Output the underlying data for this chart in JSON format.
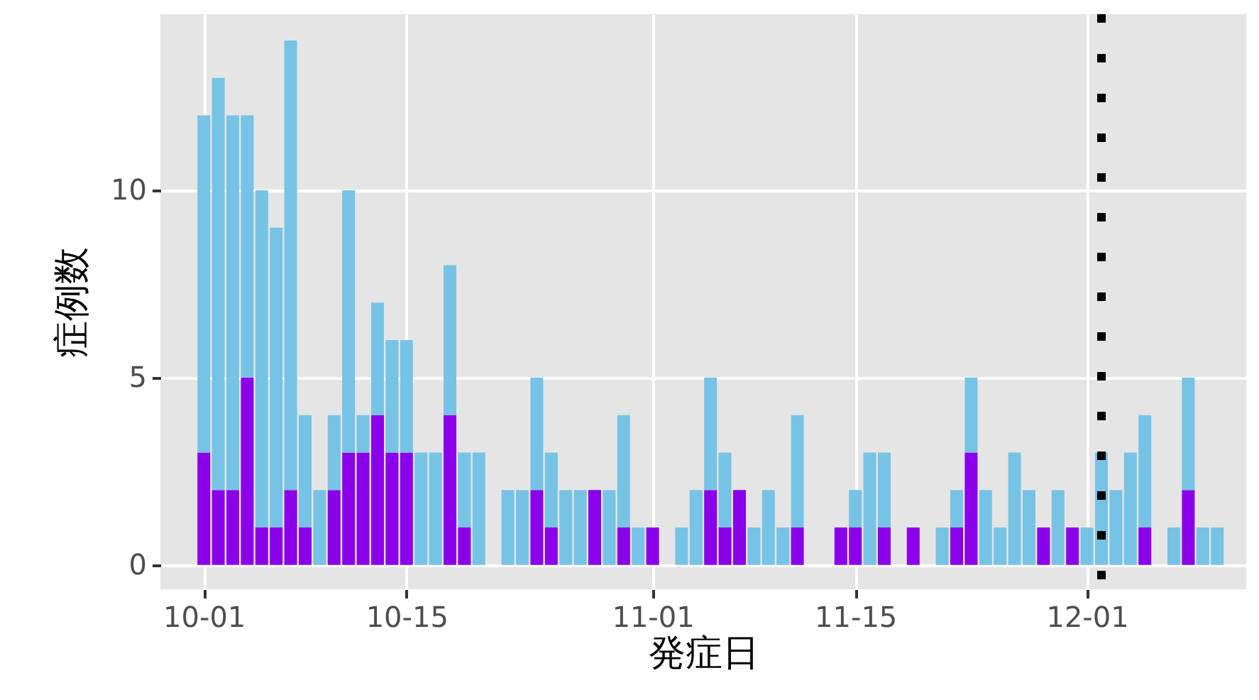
{
  "chart_data": {
    "type": "bar",
    "stacked": true,
    "xlabel": "発症日",
    "ylabel": "症例数",
    "x": [
      "--10-01",
      "--10-02",
      "--10-03",
      "--10-04",
      "--10-05",
      "--10-06",
      "--10-07",
      "--10-08",
      "--10-09",
      "--10-10",
      "--10-11",
      "--10-12",
      "--10-13",
      "--10-14",
      "--10-15",
      "--10-16",
      "--10-17",
      "--10-18",
      "--10-19",
      "--10-20",
      "--10-21",
      "--10-22",
      "--10-23",
      "--10-24",
      "--10-25",
      "--10-26",
      "--10-27",
      "--10-28",
      "--10-29",
      "--10-30",
      "--10-31",
      "--11-01",
      "--11-02",
      "--11-03",
      "--11-04",
      "--11-05",
      "--11-06",
      "--11-07",
      "--11-08",
      "--11-09",
      "--11-10",
      "--11-11",
      "--11-12",
      "--11-13",
      "--11-14",
      "--11-15",
      "--11-16",
      "--11-17",
      "--11-18",
      "--11-19",
      "--11-20",
      "--11-21",
      "--11-22",
      "--11-23",
      "--11-24",
      "--11-25",
      "--11-26",
      "--11-27",
      "--11-28",
      "--11-29",
      "--11-30",
      "--12-01",
      "--12-02",
      "--12-03",
      "--12-04",
      "--12-05",
      "--12-06",
      "--12-07",
      "--12-08",
      "--12-09",
      "--12-10"
    ],
    "series": [
      {
        "color": "#8a00e8",
        "values": [
          3,
          2,
          2,
          5,
          1,
          1,
          2,
          1,
          0,
          2,
          3,
          3,
          4,
          3,
          3,
          0,
          0,
          4,
          1,
          0,
          0,
          0,
          0,
          2,
          1,
          0,
          0,
          2,
          0,
          1,
          0,
          1,
          0,
          0,
          0,
          2,
          1,
          2,
          0,
          0,
          0,
          1,
          0,
          0,
          1,
          1,
          0,
          1,
          0,
          1,
          0,
          0,
          1,
          3,
          0,
          0,
          0,
          0,
          1,
          0,
          1,
          0,
          0,
          0,
          0,
          1,
          0,
          0,
          2,
          0,
          0
        ]
      },
      {
        "color": "#77c3e6",
        "values": [
          9,
          11,
          10,
          7,
          9,
          8,
          12,
          3,
          2,
          2,
          7,
          1,
          3,
          3,
          3,
          3,
          3,
          4,
          2,
          3,
          0,
          2,
          2,
          3,
          2,
          2,
          2,
          0,
          2,
          3,
          1,
          0,
          0,
          1,
          2,
          3,
          2,
          0,
          1,
          2,
          1,
          3,
          0,
          0,
          0,
          1,
          3,
          2,
          0,
          0,
          0,
          1,
          1,
          2,
          2,
          1,
          3,
          2,
          0,
          2,
          0,
          1,
          3,
          2,
          3,
          3,
          0,
          1,
          3,
          1,
          1
        ]
      }
    ],
    "xlim": [
      "--09-28",
      "--12-12"
    ],
    "xticks": [
      {
        "value": "--10-01",
        "label": "10-01"
      },
      {
        "value": "--10-15",
        "label": "10-15"
      },
      {
        "value": "--11-01",
        "label": "11-01"
      },
      {
        "value": "--11-15",
        "label": "11-15"
      },
      {
        "value": "--12-01",
        "label": "12-01"
      }
    ],
    "ylim": [
      -0.65,
      14.7
    ],
    "yticks": [
      0,
      5,
      10
    ],
    "grid": true,
    "ref_lines": [
      {
        "axis": "x",
        "value": "--12-02",
        "color": "#000000",
        "line_style": "dotted"
      }
    ]
  }
}
